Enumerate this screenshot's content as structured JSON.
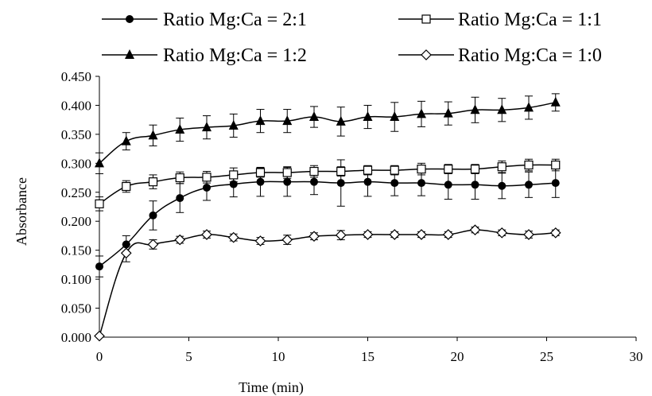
{
  "chart_data": {
    "type": "line",
    "title": "",
    "xlabel": "Time (min)",
    "ylabel": "Absorbance",
    "xlim": [
      0,
      30
    ],
    "ylim": [
      0,
      0.45
    ],
    "x_ticks": [
      "0",
      "5",
      "10",
      "15",
      "20",
      "25",
      "30"
    ],
    "y_ticks": [
      "0.000",
      "0.050",
      "0.100",
      "0.150",
      "0.200",
      "0.250",
      "0.300",
      "0.350",
      "0.400",
      "0.450"
    ],
    "grid": false,
    "legend_position": "top",
    "x": [
      0,
      1.5,
      3,
      4.5,
      6,
      7.5,
      9,
      10.5,
      12,
      13.5,
      15,
      16.5,
      18,
      19.5,
      21,
      22.5,
      24,
      25.5
    ],
    "series": [
      {
        "name": "Ratio Mg:Ca = 2:1",
        "marker": "filled-circle",
        "values": [
          0.122,
          0.16,
          0.21,
          0.24,
          0.258,
          0.264,
          0.268,
          0.268,
          0.268,
          0.266,
          0.268,
          0.266,
          0.266,
          0.263,
          0.263,
          0.261,
          0.263,
          0.266
        ],
        "errors": [
          0.018,
          0.015,
          0.025,
          0.025,
          0.022,
          0.022,
          0.025,
          0.025,
          0.022,
          0.04,
          0.025,
          0.022,
          0.022,
          0.025,
          0.025,
          0.022,
          0.022,
          0.025
        ]
      },
      {
        "name": "Ratio Mg:Ca = 1:1",
        "marker": "open-square",
        "values": [
          0.23,
          0.26,
          0.268,
          0.275,
          0.276,
          0.28,
          0.284,
          0.284,
          0.286,
          0.286,
          0.288,
          0.288,
          0.29,
          0.29,
          0.29,
          0.294,
          0.297,
          0.297
        ],
        "errors": [
          0.012,
          0.01,
          0.012,
          0.01,
          0.01,
          0.012,
          0.008,
          0.01,
          0.01,
          0.008,
          0.008,
          0.008,
          0.01,
          0.008,
          0.008,
          0.01,
          0.01,
          0.01
        ]
      },
      {
        "name": "Ratio Mg:Ca = 1:2",
        "marker": "filled-triangle",
        "values": [
          0.3,
          0.338,
          0.348,
          0.358,
          0.362,
          0.365,
          0.373,
          0.373,
          0.38,
          0.372,
          0.38,
          0.38,
          0.385,
          0.386,
          0.392,
          0.392,
          0.396,
          0.405
        ],
        "errors": [
          0.018,
          0.015,
          0.018,
          0.02,
          0.02,
          0.02,
          0.02,
          0.02,
          0.018,
          0.025,
          0.02,
          0.025,
          0.022,
          0.02,
          0.022,
          0.02,
          0.02,
          0.015
        ]
      },
      {
        "name": "Ratio Mg:Ca = 1:0",
        "marker": "open-diamond",
        "values": [
          0.002,
          0.145,
          0.16,
          0.168,
          0.177,
          0.172,
          0.166,
          0.168,
          0.174,
          0.176,
          0.177,
          0.177,
          0.177,
          0.177,
          0.185,
          0.18,
          0.177,
          0.18
        ],
        "errors": [
          0.0,
          0.015,
          0.008,
          0.006,
          0.006,
          0.006,
          0.006,
          0.008,
          0.006,
          0.008,
          0.005,
          0.005,
          0.005,
          0.005,
          0.005,
          0.005,
          0.006,
          0.005
        ]
      }
    ]
  },
  "colors": {
    "axis": "#000000",
    "series": "#000000",
    "marker_fill_open": "#ffffff"
  }
}
